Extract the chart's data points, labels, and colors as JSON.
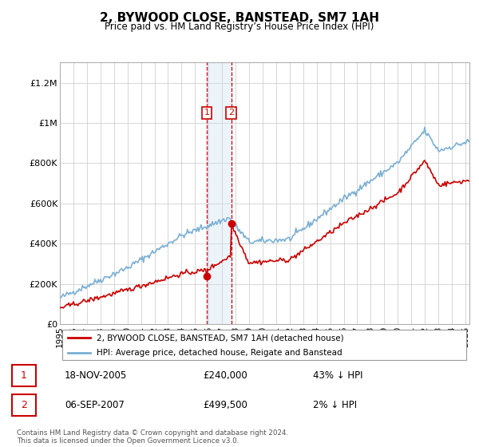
{
  "title": "2, BYWOOD CLOSE, BANSTEAD, SM7 1AH",
  "subtitle": "Price paid vs. HM Land Registry’s House Price Index (HPI)",
  "legend_line1": "2, BYWOOD CLOSE, BANSTEAD, SM7 1AH (detached house)",
  "legend_line2": "HPI: Average price, detached house, Reigate and Banstead",
  "transaction1_date": "18-NOV-2005",
  "transaction1_price": "£240,000",
  "transaction1_hpi": "43% ↓ HPI",
  "transaction2_date": "06-SEP-2007",
  "transaction2_price": "£499,500",
  "transaction2_hpi": "2% ↓ HPI",
  "footer": "Contains HM Land Registry data © Crown copyright and database right 2024.\nThis data is licensed under the Open Government Licence v3.0.",
  "hpi_color": "#7ab0d4",
  "price_color": "#cc0000",
  "transaction_box_color": "#cc0000",
  "highlight_color": "#cce0f0",
  "ylim": [
    0,
    1300000
  ],
  "ytick_labels": [
    "£0",
    "£200K",
    "£400K",
    "£600K",
    "£800K",
    "£1M",
    "£1.2M"
  ],
  "transaction1_x": 2005.88,
  "transaction1_y": 240000,
  "transaction2_x": 2007.68,
  "transaction2_y": 499500,
  "highlight_x1": 2005.88,
  "highlight_x2": 2007.68,
  "xmin": 1995.0,
  "xmax": 2025.3
}
